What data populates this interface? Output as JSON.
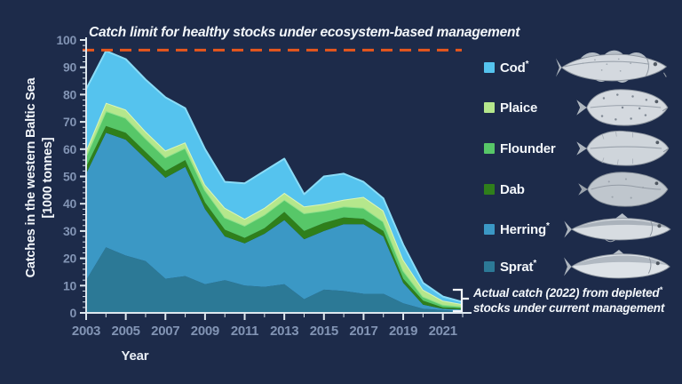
{
  "colors": {
    "background": "#1d2b4a",
    "axis": "#dde7ee",
    "tick_text": "#8294b4",
    "text_white": "#f3f7fb",
    "catch_limit_line": "#e8571d"
  },
  "axis": {
    "y_label_line1": "Catches in the western Baltic Sea",
    "y_label_line2": "[1000 tonnes]",
    "x_label": "Year",
    "y_ticks": [
      0,
      10,
      20,
      30,
      40,
      50,
      60,
      70,
      80,
      90,
      100
    ],
    "x_tick_labels": [
      2003,
      2005,
      2007,
      2009,
      2011,
      2013,
      2015,
      2017,
      2019,
      2021
    ]
  },
  "legend": {
    "items": [
      {
        "label": "Cod",
        "star": "*",
        "color": "#55c3ee",
        "fish": "cod"
      },
      {
        "label": "Plaice",
        "star": "",
        "color": "#b5e78c",
        "fish": "plaice"
      },
      {
        "label": "Flounder",
        "star": "",
        "color": "#57c768",
        "fish": "flounder"
      },
      {
        "label": "Dab",
        "star": "",
        "color": "#2f7f1b",
        "fish": "dab"
      },
      {
        "label": "Herring",
        "star": "*",
        "color": "#3b98c5",
        "fish": "herring"
      },
      {
        "label": "Sprat",
        "star": "*",
        "color": "#2c7996",
        "fish": "sprat"
      }
    ]
  },
  "note": {
    "line1": "Actual catch (2022) from depleted",
    "star": "*",
    "line2": "stocks under current management"
  },
  "chart_data": {
    "type": "area",
    "stacked": true,
    "title": "Catches in the western Baltic Sea",
    "xlabel": "Year",
    "ylabel": "Catches in the western Baltic Sea [1000 tonnes]",
    "ylim": [
      0,
      100
    ],
    "grid": false,
    "legend_position": "right",
    "x": [
      2003,
      2004,
      2005,
      2006,
      2007,
      2008,
      2009,
      2010,
      2011,
      2012,
      2013,
      2014,
      2015,
      2016,
      2017,
      2018,
      2019,
      2020,
      2021,
      2022
    ],
    "series": [
      {
        "name": "Sprat",
        "depleted": true,
        "color": "#2c7996",
        "edge": null,
        "values": [
          12,
          24,
          21,
          19,
          12.5,
          13.5,
          10.5,
          12,
          10,
          9.5,
          10.5,
          5,
          8.5,
          8,
          7,
          7,
          3.5,
          1.5,
          1,
          0.6
        ]
      },
      {
        "name": "Herring",
        "depleted": true,
        "color": "#3b98c5",
        "edge": null,
        "values": [
          39,
          42,
          42.5,
          37.5,
          37,
          40,
          27.5,
          16,
          15.5,
          19.5,
          23.5,
          22,
          21.5,
          24.5,
          25.5,
          21,
          7.5,
          1.5,
          0.5,
          0.6
        ]
      },
      {
        "name": "Dab",
        "depleted": false,
        "color": "#2f7f1b",
        "edge": null,
        "values": [
          2.5,
          2.5,
          2.5,
          2.5,
          2.5,
          2.5,
          2.5,
          2.5,
          2,
          2,
          3,
          3,
          3,
          2.5,
          2,
          2,
          1.5,
          1.5,
          0.5,
          0.5
        ]
      },
      {
        "name": "Flounder",
        "depleted": false,
        "color": "#57c768",
        "edge": "#90e08d",
        "values": [
          4,
          5.5,
          5.5,
          5,
          5,
          4.5,
          4.5,
          4.5,
          4.5,
          5,
          4.5,
          6.5,
          4.5,
          4,
          4,
          3.5,
          3,
          1.5,
          1,
          0.6
        ]
      },
      {
        "name": "Plaice",
        "depleted": false,
        "color": "#b5e78c",
        "edge": "#ddf5b6",
        "values": [
          2,
          3,
          3,
          2.5,
          2.5,
          2,
          2,
          3.5,
          2.5,
          2.5,
          2.5,
          2.5,
          2.5,
          2.5,
          4,
          4,
          4,
          2.5,
          1.5,
          0.9
        ]
      },
      {
        "name": "Cod",
        "depleted": true,
        "color": "#55c3ee",
        "edge": "#8adcf7",
        "values": [
          22.5,
          19,
          18.5,
          19,
          19.5,
          12.5,
          13,
          9.5,
          13,
          13.5,
          12.5,
          4.5,
          10,
          9.5,
          5.5,
          4.5,
          5.5,
          2.5,
          1.5,
          0.8
        ]
      }
    ],
    "catch_limit": {
      "value": 96.3,
      "label": "Catch limit for healthy stocks under ecosystem-based management",
      "color": "#e8571d",
      "style": "dashed"
    },
    "actual_catch_2022_total": 4
  }
}
